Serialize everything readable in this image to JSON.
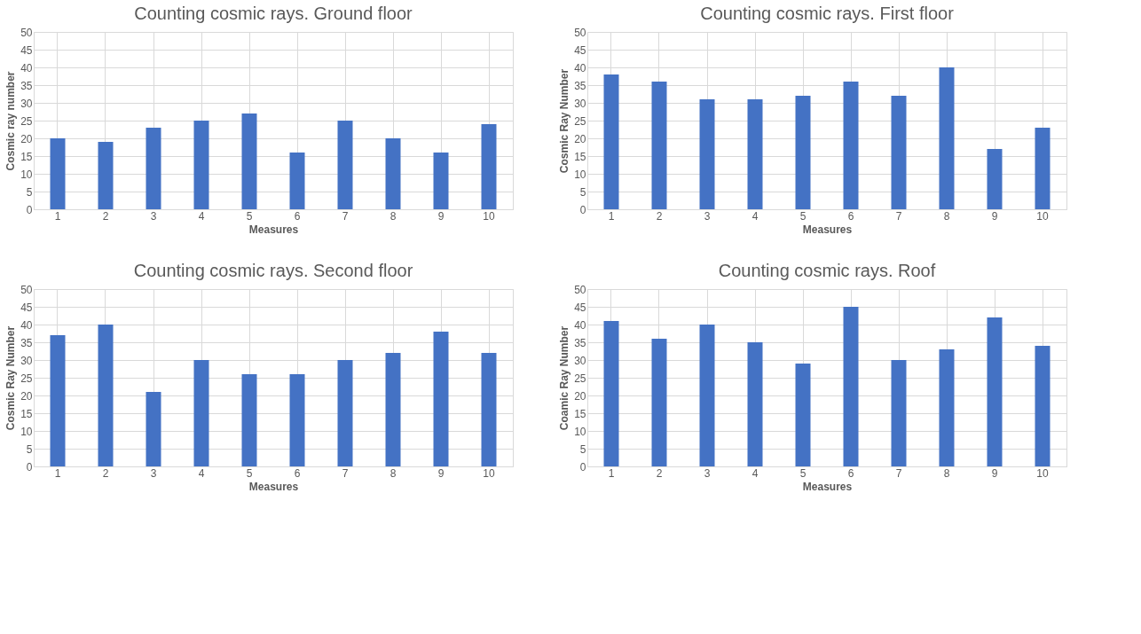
{
  "chart_data": [
    {
      "type": "bar",
      "title": "Counting cosmic rays. Ground floor",
      "xlabel": "Measures",
      "ylabel": "Cosmic ray number",
      "categories": [
        "1",
        "2",
        "3",
        "4",
        "5",
        "6",
        "7",
        "8",
        "9",
        "10"
      ],
      "values": [
        20,
        19,
        23,
        25,
        27,
        16,
        25,
        20,
        16,
        24
      ],
      "color": "#4472c4",
      "ylim": [
        0,
        50
      ],
      "yticks": [
        0,
        5,
        10,
        15,
        20,
        25,
        30,
        35,
        40,
        45,
        50
      ],
      "grid": true,
      "legend": false
    },
    {
      "type": "bar",
      "title": "Counting cosmic rays. First floor",
      "xlabel": "Measures",
      "ylabel": "Cosmic Ray Number",
      "categories": [
        "1",
        "2",
        "3",
        "4",
        "5",
        "6",
        "7",
        "8",
        "9",
        "10"
      ],
      "values": [
        38,
        36,
        31,
        31,
        32,
        36,
        32,
        40,
        17,
        23
      ],
      "color": "#4472c4",
      "ylim": [
        0,
        50
      ],
      "yticks": [
        0,
        5,
        10,
        15,
        20,
        25,
        30,
        35,
        40,
        45,
        50
      ],
      "grid": true,
      "legend": false
    },
    {
      "type": "bar",
      "title": "Counting cosmic rays. Second floor",
      "xlabel": "Measures",
      "ylabel": "Cosmic Ray Number",
      "categories": [
        "1",
        "2",
        "3",
        "4",
        "5",
        "6",
        "7",
        "8",
        "9",
        "10"
      ],
      "values": [
        37,
        40,
        21,
        30,
        26,
        26,
        30,
        32,
        38,
        32
      ],
      "color": "#4472c4",
      "ylim": [
        0,
        50
      ],
      "yticks": [
        0,
        5,
        10,
        15,
        20,
        25,
        30,
        35,
        40,
        45,
        50
      ],
      "grid": true,
      "legend": false
    },
    {
      "type": "bar",
      "title": "Counting cosmic rays. Roof",
      "xlabel": "Measures",
      "ylabel": "Coamic Ray Number",
      "categories": [
        "1",
        "2",
        "3",
        "4",
        "5",
        "6",
        "7",
        "8",
        "9",
        "10"
      ],
      "values": [
        41,
        36,
        40,
        35,
        29,
        45,
        30,
        33,
        42,
        34
      ],
      "color": "#4472c4",
      "ylim": [
        0,
        50
      ],
      "yticks": [
        0,
        5,
        10,
        15,
        20,
        25,
        30,
        35,
        40,
        45,
        50
      ],
      "grid": true,
      "legend": false
    }
  ]
}
